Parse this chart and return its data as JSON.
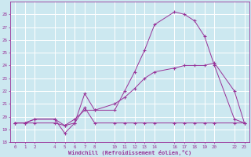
{
  "xlabel": "Windchill (Refroidissement éolien,°C)",
  "bg_color": "#cce8f0",
  "grid_color": "#ffffff",
  "line_color": "#993399",
  "xlim": [
    -0.5,
    23.5
  ],
  "ylim": [
    18,
    29
  ],
  "xticks": [
    0,
    1,
    2,
    4,
    5,
    6,
    7,
    8,
    10,
    11,
    12,
    13,
    14,
    16,
    17,
    18,
    19,
    20,
    22,
    23
  ],
  "yticks": [
    18,
    19,
    20,
    21,
    22,
    23,
    24,
    25,
    26,
    27,
    28
  ],
  "line1_x": [
    0,
    1,
    2,
    4,
    5,
    6,
    7,
    8,
    10,
    11,
    12,
    13,
    14,
    16,
    17,
    18,
    19,
    20,
    22,
    23
  ],
  "line1_y": [
    19.5,
    19.5,
    19.5,
    19.5,
    19.3,
    19.5,
    20.7,
    19.5,
    19.5,
    19.5,
    19.5,
    19.5,
    19.5,
    19.5,
    19.5,
    19.5,
    19.5,
    19.5,
    19.5,
    19.5
  ],
  "line2_x": [
    0,
    1,
    2,
    4,
    5,
    6,
    7,
    8,
    10,
    11,
    12,
    13,
    14,
    16,
    17,
    18,
    19,
    20,
    22,
    23
  ],
  "line2_y": [
    19.5,
    19.5,
    19.8,
    19.8,
    19.3,
    19.8,
    20.5,
    20.5,
    21.0,
    21.5,
    22.2,
    23.0,
    23.5,
    23.8,
    24.0,
    24.0,
    24.0,
    24.2,
    22.0,
    19.5
  ],
  "line3_x": [
    0,
    1,
    2,
    4,
    5,
    6,
    7,
    8,
    10,
    11,
    12,
    13,
    14,
    16,
    17,
    18,
    19,
    20,
    22,
    23
  ],
  "line3_y": [
    19.5,
    19.5,
    19.8,
    19.8,
    18.7,
    19.5,
    21.8,
    20.5,
    20.5,
    22.0,
    23.5,
    25.2,
    27.2,
    28.2,
    28.0,
    27.5,
    26.3,
    24.0,
    19.8,
    19.5
  ]
}
